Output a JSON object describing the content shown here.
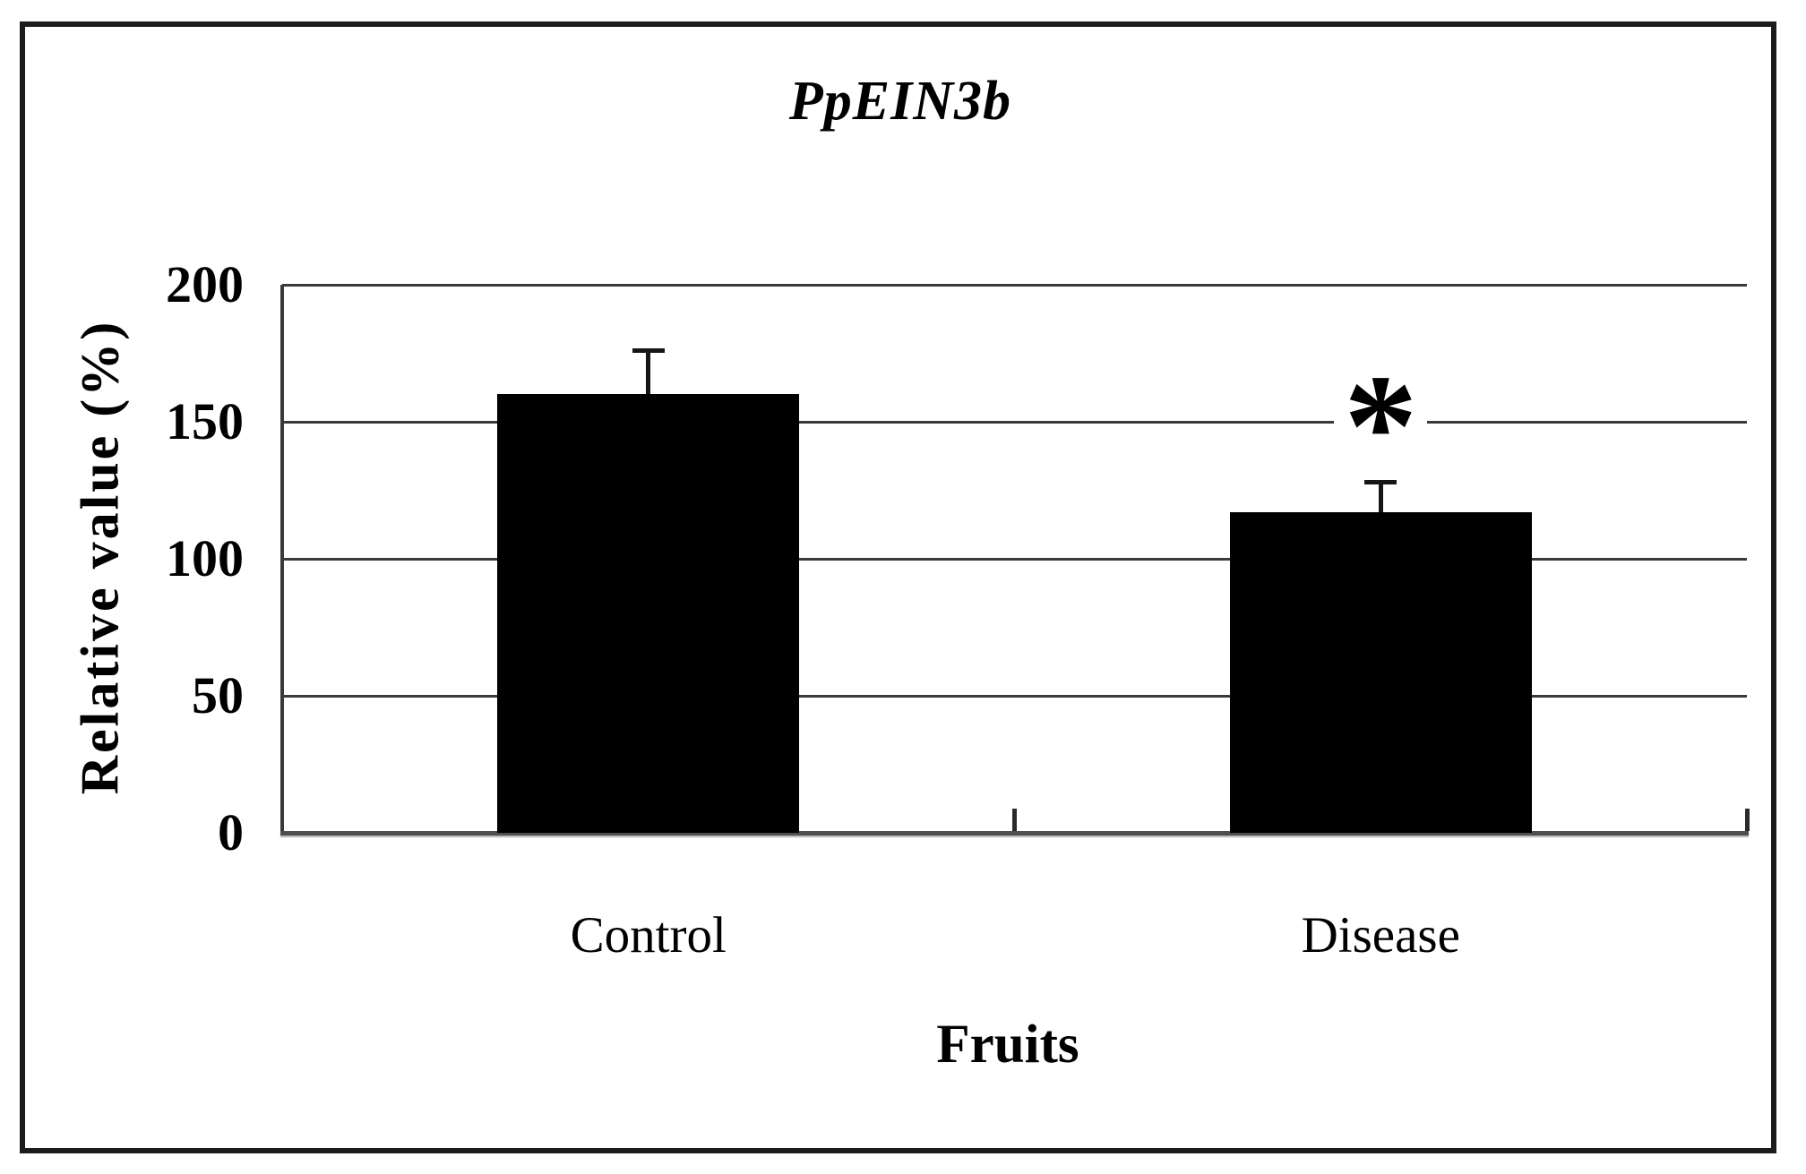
{
  "figure": {
    "background": "#ffffff",
    "frame_border_color": "#1c1c1c"
  },
  "chart_data": {
    "type": "bar",
    "title": "PpEIN3b",
    "categories": [
      "Control",
      "Disease"
    ],
    "values": [
      160,
      117
    ],
    "errors_plus": [
      16,
      11
    ],
    "significance": [
      "",
      "*"
    ],
    "xlabel": "Fruits",
    "ylabel": "Relative value (%)",
    "ylim": [
      0,
      200
    ],
    "ytick_step": 50,
    "yticks": [
      0,
      50,
      100,
      150,
      200
    ],
    "bar_color": "#000000",
    "gridline_color": "#3a3a3a",
    "axis_color": "#3a3a3a",
    "grid": "horizontal",
    "legend_position": "none"
  }
}
